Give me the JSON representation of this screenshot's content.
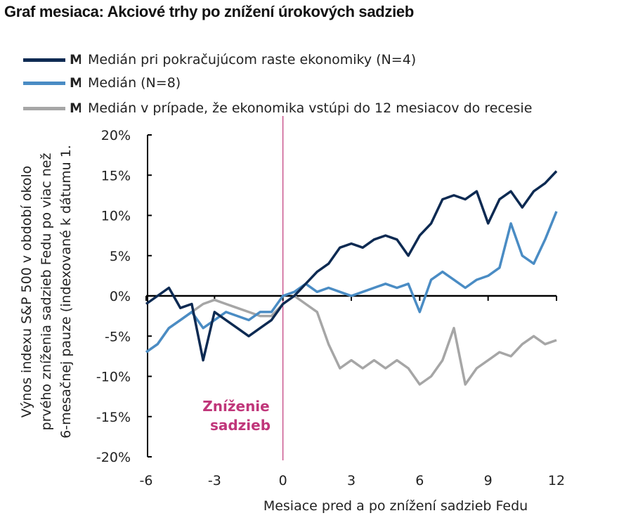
{
  "title": "Graf mesiaca: Akciové trhy po znížení úrokových sadzieb",
  "legend": [
    {
      "clipped": "Medián",
      "label": "Medián pri pokračujúcom raste ekonomiky (N=4)",
      "color": "#0d2a52"
    },
    {
      "clipped": "Medián",
      "label": "Medián (N=8)",
      "color": "#4a8cc4"
    },
    {
      "clipped": "Medián",
      "label": "Medián v prípade, že ekonomika vstúpi do 12 mesiacov do recesie",
      "color": "#a6a6a6"
    }
  ],
  "chart_data": {
    "type": "line",
    "title": "Graf mesiaca: Akciové trhy po znížení úrokových sadzieb",
    "xlabel": "Mesiace pred a po znížení sadzieb Fedu",
    "ylabel_lines": [
      "Výnos indexu S&P 500 v období okolo",
      "prvého zníženia sadzieb Fedu po viac než",
      "6-mesačnej pauze (indexované k dátumu 1."
    ],
    "xlim": [
      -6,
      12
    ],
    "ylim": [
      -20,
      20
    ],
    "xticks": [
      "-6",
      "-3",
      "0",
      "3",
      "6",
      "9",
      "12"
    ],
    "yticks": [
      "20%",
      "15%",
      "10%",
      "5%",
      "0%",
      "-5%",
      "-10%",
      "-15%",
      "-20%"
    ],
    "annotation": {
      "text_lines": [
        "Zníženie",
        "sadzieb"
      ],
      "x": 0,
      "color": "#c0367a"
    },
    "x": [
      -6,
      -5.5,
      -5,
      -4.5,
      -4,
      -3.5,
      -3,
      -2.5,
      -2,
      -1.5,
      -1,
      -0.5,
      0,
      0.5,
      1,
      1.5,
      2,
      2.5,
      3,
      3.5,
      4,
      4.5,
      5,
      5.5,
      6,
      6.5,
      7,
      7.5,
      8,
      8.5,
      9,
      9.5,
      10,
      10.5,
      11,
      11.5,
      12
    ],
    "series": [
      {
        "name": "Medián pri pokračujúcom raste ekonomiky (N=4)",
        "color": "#0d2a52",
        "values": [
          -1,
          0,
          1,
          -1.5,
          -1,
          -8,
          -2,
          -3,
          -4,
          -5,
          -4,
          -3,
          -1,
          0,
          1.5,
          3,
          4,
          6,
          6.5,
          6,
          7,
          7.5,
          7,
          5,
          7.5,
          9,
          12,
          12.5,
          12,
          13,
          9,
          12,
          13,
          11,
          13,
          14,
          15.5
        ]
      },
      {
        "name": "Medián (N=8)",
        "color": "#4a8cc4",
        "values": [
          -7,
          -6,
          -4,
          -3,
          -2,
          -4,
          -3,
          -2,
          -2.5,
          -3,
          -2,
          -2,
          0,
          0.5,
          1.5,
          0.5,
          1,
          0.5,
          0,
          0.5,
          1,
          1.5,
          1,
          1.5,
          -2,
          2,
          3,
          2,
          1,
          2,
          2.5,
          3.5,
          9,
          5,
          4,
          7,
          10.5
        ]
      },
      {
        "name": "Medián v prípade, že ekonomika vstúpi do 12 mesiacov do recesie",
        "color": "#a6a6a6",
        "values": [
          -7,
          -6,
          -4,
          -3,
          -2,
          -1,
          -0.5,
          -1,
          -1.5,
          -2,
          -2.5,
          -2.5,
          -1,
          0,
          -1,
          -2,
          -6,
          -9,
          -8,
          -9,
          -8,
          -9,
          -8,
          -9,
          -11,
          -10,
          -8,
          -4,
          -11,
          -9,
          -8,
          -7,
          -7.5,
          -6,
          -5,
          -6,
          -5.5
        ]
      }
    ]
  }
}
